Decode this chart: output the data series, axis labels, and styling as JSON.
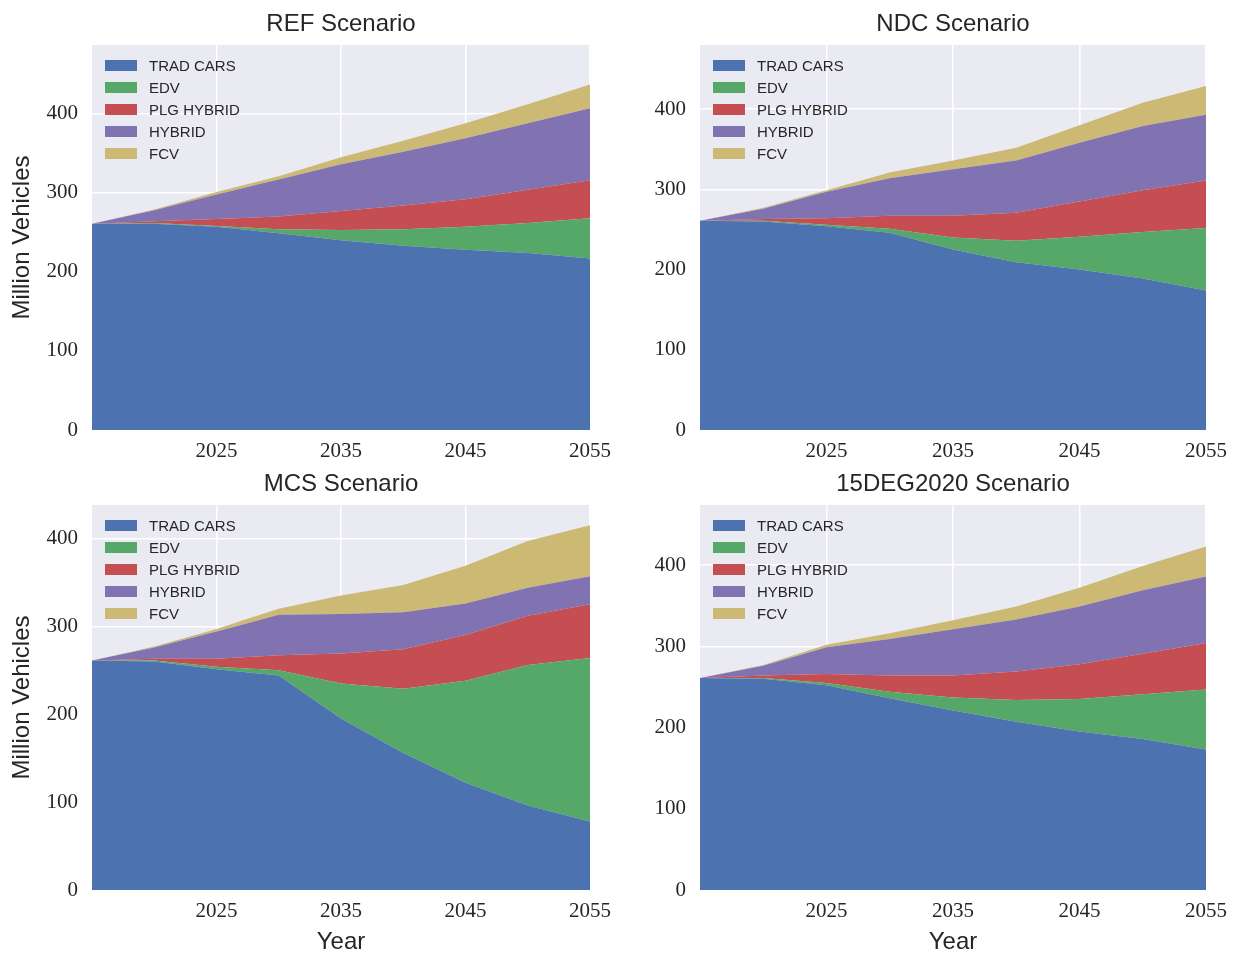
{
  "chart_data": [
    {
      "type": "area",
      "title": "REF Scenario",
      "ylabel": "Million Vehicles",
      "stacked": true,
      "x": [
        2015,
        2020,
        2025,
        2030,
        2035,
        2040,
        2045,
        2050,
        2055
      ],
      "series": [
        {
          "name": "TRAD CARS",
          "color": "#4c72b0",
          "values": [
            261,
            261,
            257,
            249,
            240,
            233,
            228,
            224,
            217
          ]
        },
        {
          "name": "EDV",
          "color": "#55a868",
          "values": [
            0,
            1,
            1,
            5,
            13,
            21,
            29,
            38,
            51
          ]
        },
        {
          "name": "PLG HYBRID",
          "color": "#c44e52",
          "values": [
            0,
            2,
            9,
            16,
            24,
            30,
            35,
            42,
            48
          ]
        },
        {
          "name": "HYBRID",
          "color": "#8172b2",
          "values": [
            0,
            14,
            31,
            47,
            59,
            68,
            77,
            84,
            91
          ]
        },
        {
          "name": "FCV",
          "color": "#ccb974",
          "values": [
            0,
            1,
            3,
            4,
            9,
            14,
            19,
            24,
            30
          ]
        }
      ],
      "xlim": [
        2015,
        2055
      ],
      "xticks": [
        2025,
        2035,
        2045,
        2055
      ],
      "ylim": [
        0,
        487
      ],
      "yticks": [
        0,
        100,
        200,
        300,
        400
      ],
      "grid": true,
      "legend": "top left"
    },
    {
      "type": "area",
      "title": "NDC Scenario",
      "stacked": true,
      "x": [
        2015,
        2020,
        2025,
        2030,
        2035,
        2040,
        2045,
        2050,
        2055
      ],
      "series": [
        {
          "name": "TRAD CARS",
          "color": "#4c72b0",
          "values": [
            261,
            260,
            254,
            246,
            225,
            209,
            200,
            189,
            174
          ]
        },
        {
          "name": "EDV",
          "color": "#55a868",
          "values": [
            0,
            1,
            2,
            5,
            15,
            27,
            41,
            58,
            78
          ]
        },
        {
          "name": "PLG HYBRID",
          "color": "#c44e52",
          "values": [
            0,
            2,
            8,
            16,
            27,
            35,
            44,
            52,
            59
          ]
        },
        {
          "name": "HYBRID",
          "color": "#8172b2",
          "values": [
            0,
            13,
            33,
            47,
            58,
            65,
            73,
            80,
            82
          ]
        },
        {
          "name": "FCV",
          "color": "#ccb974",
          "values": [
            0,
            1,
            2,
            7,
            11,
            16,
            22,
            29,
            36
          ]
        }
      ],
      "xlim": [
        2015,
        2055
      ],
      "xticks": [
        2025,
        2035,
        2045,
        2055
      ],
      "ylim": [
        0,
        480
      ],
      "yticks": [
        0,
        100,
        200,
        300,
        400
      ],
      "grid": true,
      "legend": "top left"
    },
    {
      "type": "area",
      "title": "MCS Scenario",
      "xlabel": "Year",
      "ylabel": "Million Vehicles",
      "stacked": true,
      "x": [
        2015,
        2020,
        2025,
        2030,
        2035,
        2040,
        2045,
        2050,
        2055
      ],
      "series": [
        {
          "name": "TRAD CARS",
          "color": "#4c72b0",
          "values": [
            261,
            260,
            251,
            244,
            195,
            156,
            122,
            96,
            78
          ]
        },
        {
          "name": "EDV",
          "color": "#55a868",
          "values": [
            0,
            1,
            3,
            6,
            40,
            73,
            116,
            160,
            186
          ]
        },
        {
          "name": "PLG HYBRID",
          "color": "#c44e52",
          "values": [
            0,
            2,
            9,
            17,
            34,
            45,
            52,
            56,
            61
          ]
        },
        {
          "name": "HYBRID",
          "color": "#8172b2",
          "values": [
            0,
            13,
            31,
            46,
            45,
            42,
            36,
            32,
            32
          ]
        },
        {
          "name": "FCV",
          "color": "#ccb974",
          "values": [
            0,
            1,
            3,
            7,
            21,
            31,
            43,
            53,
            58
          ]
        }
      ],
      "xlim": [
        2015,
        2055
      ],
      "xticks": [
        2025,
        2035,
        2045,
        2055
      ],
      "ylim": [
        0,
        438
      ],
      "yticks": [
        0,
        100,
        200,
        300,
        400
      ],
      "grid": true,
      "legend": "top left"
    },
    {
      "type": "area",
      "title": "15DEG2020 Scenario",
      "xlabel": "Year",
      "stacked": true,
      "x": [
        2015,
        2020,
        2025,
        2030,
        2035,
        2040,
        2045,
        2050,
        2055
      ],
      "series": [
        {
          "name": "TRAD CARS",
          "color": "#4c72b0",
          "values": [
            261,
            260,
            252,
            236,
            221,
            207,
            195,
            186,
            173
          ]
        },
        {
          "name": "EDV",
          "color": "#55a868",
          "values": [
            0,
            1,
            3,
            8,
            16,
            27,
            40,
            55,
            74
          ]
        },
        {
          "name": "PLG HYBRID",
          "color": "#c44e52",
          "values": [
            0,
            3,
            11,
            20,
            27,
            35,
            43,
            50,
            57
          ]
        },
        {
          "name": "HYBRID",
          "color": "#8172b2",
          "values": [
            0,
            12,
            33,
            45,
            57,
            64,
            71,
            78,
            82
          ]
        },
        {
          "name": "FCV",
          "color": "#ccb974",
          "values": [
            0,
            1,
            3,
            7,
            11,
            16,
            23,
            30,
            37
          ]
        }
      ],
      "xlim": [
        2015,
        2055
      ],
      "xticks": [
        2025,
        2035,
        2045,
        2055
      ],
      "ylim": [
        0,
        474
      ],
      "yticks": [
        0,
        100,
        200,
        300,
        400
      ],
      "grid": true,
      "legend": "top left"
    }
  ]
}
